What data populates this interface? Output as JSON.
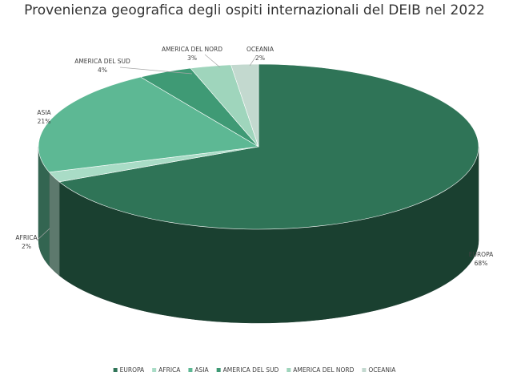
{
  "chart_data": {
    "type": "pie",
    "title": "Provenienza geografica degli ospiti internazionali del DEIB nel 2022",
    "categories": [
      "EUROPA",
      "AFRICA",
      "ASIA",
      "AMERICA DEL SUD",
      "AMERICA DEL NORD",
      "OCEANIA"
    ],
    "values": [
      68,
      2,
      21,
      4,
      3,
      2
    ],
    "value_labels": [
      "68%",
      "2%",
      "21%",
      "4%",
      "3%",
      "2%"
    ],
    "colors": [
      "#2f7457",
      "#a9dcc6",
      "#5db894",
      "#3f9a75",
      "#9fd5bc",
      "#c3d9cf"
    ],
    "legend": "bottom"
  }
}
